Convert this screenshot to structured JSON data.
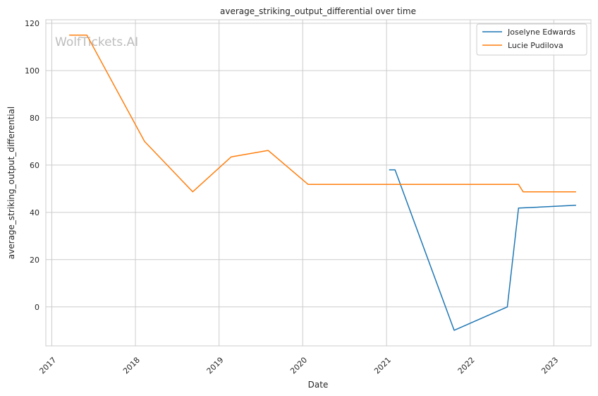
{
  "chart_data": {
    "type": "line",
    "title": "average_striking_output_differential over time",
    "xlabel": "Date",
    "ylabel": "average_striking_output_differential",
    "watermark": "WolfTickets.AI",
    "xlim": [
      "2016-12-06",
      "2023-06-12"
    ],
    "ylim": [
      -16.5,
      121.5
    ],
    "x_ticks": [
      "2017",
      "2018",
      "2019",
      "2020",
      "2021",
      "2022",
      "2023"
    ],
    "y_ticks": [
      0,
      20,
      40,
      60,
      80,
      100,
      120
    ],
    "grid": true,
    "legend_position": "top-right",
    "series": [
      {
        "name": "Joselyne Edwards",
        "color": "#1f77b4",
        "points": [
          [
            "2021-01-12",
            58
          ],
          [
            "2021-02-07",
            58
          ],
          [
            "2021-10-23",
            -9.9
          ],
          [
            "2022-06-12",
            0
          ],
          [
            "2022-07-31",
            41.8
          ],
          [
            "2023-04-08",
            43
          ]
        ]
      },
      {
        "name": "Lucie Pudilova",
        "color": "#ff7f0e",
        "points": [
          [
            "2017-03-18",
            115
          ],
          [
            "2017-06-03",
            115
          ],
          [
            "2018-02-10",
            70
          ],
          [
            "2018-09-08",
            48.7
          ],
          [
            "2019-02-23",
            63.5
          ],
          [
            "2019-08-03",
            66.2
          ],
          [
            "2020-01-25",
            51.8
          ],
          [
            "2022-07-31",
            51.8
          ],
          [
            "2022-08-20",
            48.7
          ],
          [
            "2023-04-08",
            48.7
          ]
        ]
      }
    ]
  }
}
